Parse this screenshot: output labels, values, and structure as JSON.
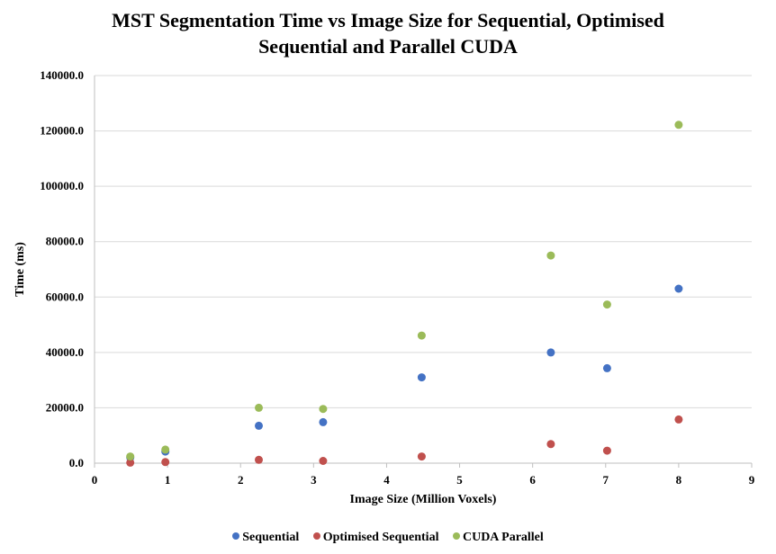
{
  "chart_data": {
    "type": "scatter",
    "title_lines": [
      "MST Segmentation Time vs Image Size for Sequential, Optimised",
      "Sequential and Parallel CUDA"
    ],
    "xlabel": "Image Size (Million Voxels)",
    "ylabel": "Time (ms)",
    "xlim": [
      0,
      9
    ],
    "ylim": [
      0,
      140000
    ],
    "x_ticks": [
      "0",
      "1",
      "2",
      "3",
      "4",
      "5",
      "6",
      "7",
      "8",
      "9"
    ],
    "y_ticks": [
      "0.0",
      "20000.0",
      "40000.0",
      "60000.0",
      "80000.0",
      "100000.0",
      "120000.0",
      "140000.0"
    ],
    "grid": "horizontal",
    "legend_position": "bottom",
    "series": [
      {
        "name": "Sequential",
        "color": "#4472C4",
        "points": [
          [
            0.49,
            2000
          ],
          [
            0.97,
            4200
          ],
          [
            2.25,
            13500
          ],
          [
            3.13,
            14800
          ],
          [
            4.48,
            31000
          ],
          [
            6.25,
            40000
          ],
          [
            7.02,
            34300
          ],
          [
            8.0,
            63000
          ]
        ]
      },
      {
        "name": "Optimised Sequential",
        "color": "#C0504D",
        "points": [
          [
            0.49,
            200
          ],
          [
            0.97,
            400
          ],
          [
            2.25,
            1200
          ],
          [
            3.13,
            800
          ],
          [
            4.48,
            2400
          ],
          [
            6.25,
            6900
          ],
          [
            7.02,
            4500
          ],
          [
            8.0,
            15800
          ]
        ]
      },
      {
        "name": "CUDA Parallel",
        "color": "#9BBB59",
        "points": [
          [
            0.49,
            2400
          ],
          [
            0.97,
            4900
          ],
          [
            2.25,
            20000
          ],
          [
            3.13,
            19600
          ],
          [
            4.48,
            46100
          ],
          [
            6.25,
            75000
          ],
          [
            7.02,
            57300
          ],
          [
            8.0,
            122200
          ]
        ]
      }
    ]
  }
}
